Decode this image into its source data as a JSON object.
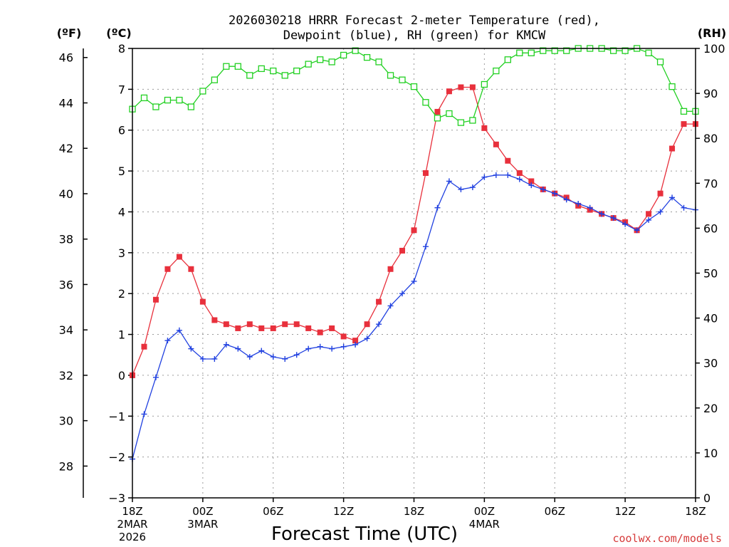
{
  "chart_data": {
    "type": "line",
    "title_lines": [
      "2026030218 HRRR Forecast 2-meter Temperature (red),",
      "Dewpoint (blue), RH (green) for KMCW"
    ],
    "units": {
      "fahrenheit": "(ºF)",
      "celsius": "(ºC)",
      "rh": "(RH)"
    },
    "xlabel": "Forecast Time (UTC)",
    "credit": "coolwx.com/models",
    "x_forecast_hours": [
      0,
      48
    ],
    "x_ticks": [
      {
        "hour": 0,
        "lines": [
          "18Z",
          "2MAR",
          "2026"
        ]
      },
      {
        "hour": 6,
        "lines": [
          "00Z",
          "3MAR"
        ]
      },
      {
        "hour": 12,
        "lines": [
          "06Z"
        ]
      },
      {
        "hour": 18,
        "lines": [
          "12Z"
        ]
      },
      {
        "hour": 24,
        "lines": [
          "18Z"
        ]
      },
      {
        "hour": 30,
        "lines": [
          "00Z",
          "4MAR"
        ]
      },
      {
        "hour": 36,
        "lines": [
          "06Z"
        ]
      },
      {
        "hour": 42,
        "lines": [
          "12Z"
        ]
      },
      {
        "hour": 48,
        "lines": [
          "18Z"
        ]
      }
    ],
    "y_celsius": {
      "range": [
        -3,
        8
      ],
      "ticks": [
        "−3",
        "−2",
        "−1",
        "0",
        "1",
        "2",
        "3",
        "4",
        "5",
        "6",
        "7",
        "8"
      ]
    },
    "y_fahrenheit": {
      "ticks": [
        "28",
        "30",
        "32",
        "34",
        "36",
        "38",
        "40",
        "42",
        "44",
        "46"
      ]
    },
    "y_rh": {
      "range": [
        0,
        100
      ],
      "ticks": [
        "0",
        "10",
        "20",
        "30",
        "40",
        "50",
        "60",
        "70",
        "80",
        "90",
        "100"
      ]
    },
    "grid": true,
    "series": [
      {
        "name": "2-meter Temperature (°C)",
        "axis": "celsius",
        "color": "#e8303c",
        "marker": "filled-square",
        "values": [
          0.0,
          0.7,
          1.85,
          2.6,
          2.9,
          2.6,
          1.8,
          1.35,
          1.25,
          1.15,
          1.25,
          1.15,
          1.15,
          1.25,
          1.25,
          1.15,
          1.05,
          1.15,
          0.95,
          0.85,
          1.25,
          1.8,
          2.6,
          3.05,
          3.55,
          4.95,
          6.45,
          6.95,
          7.05,
          7.05,
          6.05,
          5.65,
          5.25,
          4.95,
          4.75,
          4.55,
          4.45,
          4.35,
          4.15,
          4.05,
          3.95,
          3.85,
          3.75,
          3.55,
          3.95,
          4.45,
          5.55,
          6.15,
          6.15
        ]
      },
      {
        "name": "Dewpoint (°C)",
        "axis": "celsius",
        "color": "#2040e0",
        "marker": "plus",
        "values": [
          -2.05,
          -0.95,
          -0.05,
          0.85,
          1.1,
          0.65,
          0.4,
          0.4,
          0.75,
          0.65,
          0.45,
          0.6,
          0.45,
          0.4,
          0.5,
          0.65,
          0.7,
          0.65,
          0.7,
          0.75,
          0.9,
          1.25,
          1.7,
          2.0,
          2.3,
          3.15,
          4.1,
          4.75,
          4.55,
          4.6,
          4.85,
          4.9,
          4.9,
          4.8,
          4.65,
          4.55,
          4.45,
          4.3,
          4.2,
          4.1,
          3.95,
          3.85,
          3.7,
          3.55,
          3.8,
          4.0,
          4.35,
          4.1,
          4.05
        ]
      },
      {
        "name": "RH (%)",
        "axis": "rh",
        "color": "#22d022",
        "marker": "open-square",
        "values": [
          86.5,
          89,
          87,
          88.5,
          88.5,
          87,
          90.5,
          93,
          96,
          96,
          94,
          95.5,
          95,
          94,
          95,
          96.5,
          97.5,
          97,
          98.5,
          99.5,
          98,
          97,
          94,
          93,
          91.5,
          88,
          84.5,
          85.5,
          83.5,
          84,
          92,
          95,
          97.5,
          99,
          99,
          99.5,
          99.5,
          99.5,
          100,
          100,
          100,
          99.5,
          99.5,
          100,
          99,
          97,
          91.5,
          86,
          86
        ]
      }
    ]
  }
}
